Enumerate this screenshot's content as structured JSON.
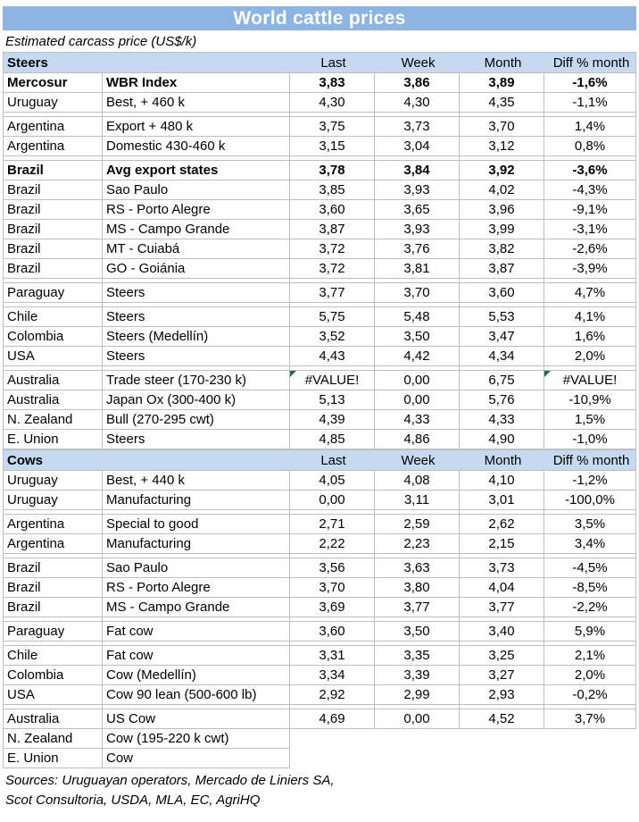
{
  "title": "World cattle prices",
  "subtitle": "Estimated carcass price (US$/k)",
  "icons": {
    "error_flag": "green-corner-triangle"
  },
  "colors": {
    "title_bg": "#8DB4E2",
    "header_bg": "#C5D9F1",
    "border": "#BFBFBF",
    "error_flag": "#1E7145",
    "text": "#000000",
    "title_text": "#FFFFFF"
  },
  "chart_data": {
    "type": "table",
    "columns": [
      "Last",
      "Week",
      "Month",
      "Diff % month"
    ],
    "sections": [
      {
        "name": "Steers",
        "rows": [
          {
            "country": "Mercosur",
            "product": "WBR Index",
            "last": "3,83",
            "week": "3,86",
            "month": "3,89",
            "diff": "-1,6%",
            "bold": true
          },
          {
            "country": "Uruguay",
            "product": "Best, + 460 k",
            "last": "4,30",
            "week": "4,30",
            "month": "4,35",
            "diff": "-1,1%",
            "gap_after": true
          },
          {
            "country": "Argentina",
            "product": "Export + 480 k",
            "last": "3,75",
            "week": "3,73",
            "month": "3,70",
            "diff": "1,4%"
          },
          {
            "country": "Argentina",
            "product": "Domestic 430-460 k",
            "last": "3,15",
            "week": "3,04",
            "month": "3,12",
            "diff": "0,8%",
            "gap_after": true
          },
          {
            "country": "Brazil",
            "product": "Avg export states",
            "last": "3,78",
            "week": "3,84",
            "month": "3,92",
            "diff": "-3,6%",
            "bold": true
          },
          {
            "country": "Brazil",
            "product": "Sao Paulo",
            "last": "3,85",
            "week": "3,93",
            "month": "4,02",
            "diff": "-4,3%"
          },
          {
            "country": "Brazil",
            "product": "RS - Porto Alegre",
            "last": "3,60",
            "week": "3,65",
            "month": "3,96",
            "diff": "-9,1%"
          },
          {
            "country": "Brazil",
            "product": "MS - Campo Grande",
            "last": "3,87",
            "week": "3,93",
            "month": "3,99",
            "diff": "-3,1%"
          },
          {
            "country": "Brazil",
            "product": "MT - Cuiabá",
            "last": "3,72",
            "week": "3,76",
            "month": "3,82",
            "diff": "-2,6%"
          },
          {
            "country": "Brazil",
            "product": "GO - Goiánia",
            "last": "3,72",
            "week": "3,81",
            "month": "3,87",
            "diff": "-3,9%",
            "gap_after": true
          },
          {
            "country": "Paraguay",
            "product": "Steers",
            "last": "3,77",
            "week": "3,70",
            "month": "3,60",
            "diff": "4,7%",
            "gap_after": true
          },
          {
            "country": "Chile",
            "product": "Steers",
            "last": "5,75",
            "week": "5,48",
            "month": "5,53",
            "diff": "4,1%"
          },
          {
            "country": "Colombia",
            "product": "Steers (Medellín)",
            "last": "3,52",
            "week": "3,50",
            "month": "3,47",
            "diff": "1,6%"
          },
          {
            "country": "USA",
            "product": "Steers",
            "last": "4,43",
            "week": "4,42",
            "month": "4,34",
            "diff": "2,0%",
            "gap_after": true
          },
          {
            "country": "Australia",
            "product": "Trade steer (170-230 k)",
            "last": "#VALUE!",
            "week": "0,00",
            "month": "6,75",
            "diff": "#VALUE!",
            "error_last": true,
            "error_diff": true
          },
          {
            "country": "Australia",
            "product": "Japan Ox (300-400 k)",
            "last": "5,13",
            "week": "0,00",
            "month": "5,76",
            "diff": "-10,9%"
          },
          {
            "country": "N. Zealand",
            "product": "Bull (270-295 cwt)",
            "last": "4,39",
            "week": "4,33",
            "month": "4,33",
            "diff": "1,5%"
          },
          {
            "country": "E. Union",
            "product": "Steers",
            "last": "4,85",
            "week": "4,86",
            "month": "4,90",
            "diff": "-1,0%"
          }
        ]
      },
      {
        "name": "Cows",
        "rows": [
          {
            "country": "Uruguay",
            "product": "Best, + 440 k",
            "last": "4,05",
            "week": "4,08",
            "month": "4,10",
            "diff": "-1,2%"
          },
          {
            "country": "Uruguay",
            "product": "Manufacturing",
            "last": "0,00",
            "week": "3,11",
            "month": "3,01",
            "diff": "-100,0%",
            "gap_after": true
          },
          {
            "country": "Argentina",
            "product": "Special to good",
            "last": "2,71",
            "week": "2,59",
            "month": "2,62",
            "diff": "3,5%"
          },
          {
            "country": "Argentina",
            "product": "Manufacturing",
            "last": "2,22",
            "week": "2,23",
            "month": "2,15",
            "diff": "3,4%",
            "gap_after": true
          },
          {
            "country": "Brazil",
            "product": "Sao Paulo",
            "last": "3,56",
            "week": "3,63",
            "month": "3,73",
            "diff": "-4,5%"
          },
          {
            "country": "Brazil",
            "product": "RS - Porto Alegre",
            "last": "3,70",
            "week": "3,80",
            "month": "4,04",
            "diff": "-8,5%"
          },
          {
            "country": "Brazil",
            "product": "MS - Campo Grande",
            "last": "3,69",
            "week": "3,77",
            "month": "3,77",
            "diff": "-2,2%",
            "gap_after": true
          },
          {
            "country": "Paraguay",
            "product": "Fat cow",
            "last": "3,60",
            "week": "3,50",
            "month": "3,40",
            "diff": "5,9%",
            "gap_after": true
          },
          {
            "country": "Chile",
            "product": "Fat cow",
            "last": "3,31",
            "week": "3,35",
            "month": "3,25",
            "diff": "2,1%"
          },
          {
            "country": "Colombia",
            "product": "Cow (Medellín)",
            "last": "3,34",
            "week": "3,39",
            "month": "3,27",
            "diff": "2,0%"
          },
          {
            "country": "USA",
            "product": "Cow 90 lean (500-600 lb)",
            "last": "2,92",
            "week": "2,99",
            "month": "2,93",
            "diff": "-0,2%",
            "gap_after": true
          },
          {
            "country": "Australia",
            "product": "US Cow",
            "last": "4,69",
            "week": "0,00",
            "month": "4,52",
            "diff": "3,7%"
          },
          {
            "country": "N. Zealand",
            "product": "Cow (195-220 k cwt)",
            "no_values": true
          },
          {
            "country": "E. Union",
            "product": "Cow",
            "no_values": true
          }
        ]
      }
    ]
  },
  "sources": [
    "Sources: Uruguayan operators, Mercado de Liniers SA,",
    "Scot Consultoria, USDA, MLA, EC, AgriHQ"
  ]
}
